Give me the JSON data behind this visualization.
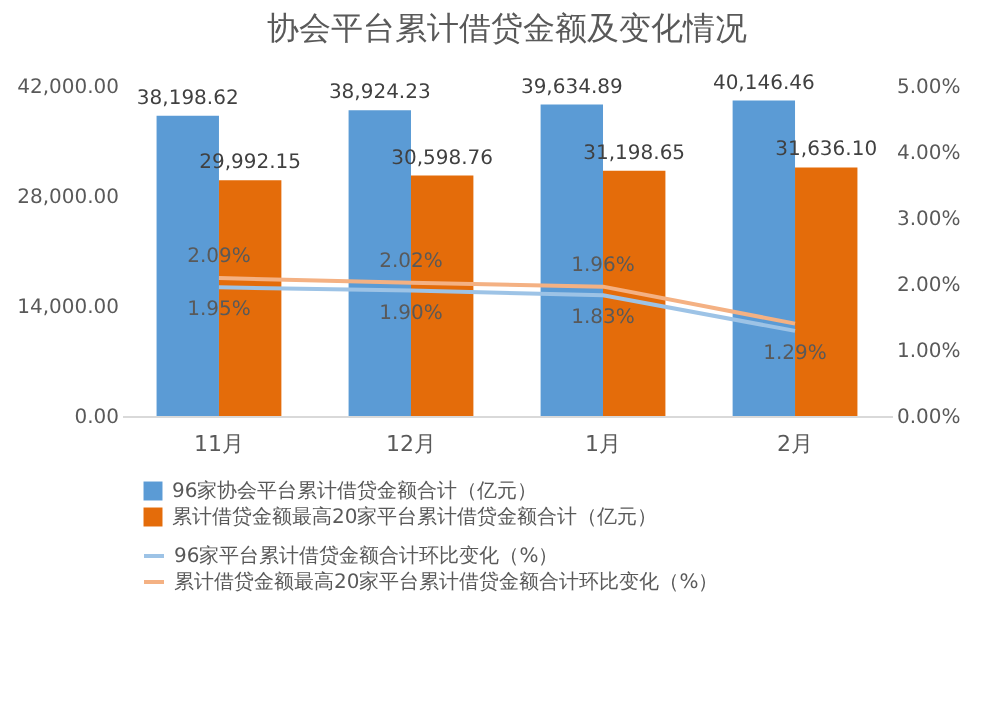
{
  "chart_data": {
    "type": "bar",
    "title": "协会平台累计借贷金额及变化情况",
    "categories": [
      "11月",
      "12月",
      "1月",
      "2月"
    ],
    "series": [
      {
        "name": "96家协会平台累计借贷金额合计（亿元）",
        "color": "#5b9bd5",
        "values": [
          38198.62,
          38924.23,
          39634.89,
          40146.46
        ],
        "value_labels": [
          "38,198.62",
          "38,924.23",
          "39,634.89",
          "40,146.46"
        ]
      },
      {
        "name": "累计借贷金额最高20家平台累计借贷金额合计（亿元）",
        "color": "#e46c0a",
        "values": [
          29992.15,
          30598.76,
          31198.65,
          31636.1
        ],
        "value_labels": [
          "29,992.15",
          "30,598.76",
          "31,198.65",
          "31,636.10"
        ]
      },
      {
        "name": "96家平台累计借贷金额合计环比变化（%）",
        "type": "line",
        "axis": "y2",
        "color": "#9dc3e6",
        "values": [
          1.95,
          1.9,
          1.83,
          1.29
        ],
        "value_labels": [
          "1.95%",
          "1.90%",
          "1.83%",
          "1.29%"
        ]
      },
      {
        "name": "累计借贷金额最高20家平台累计借贷金额合计环比变化（%）",
        "type": "line",
        "axis": "y2",
        "color": "#f4b183",
        "values": [
          2.09,
          2.02,
          1.96,
          1.4
        ],
        "value_labels": [
          "2.09%",
          "2.02%",
          "1.96%",
          null
        ]
      }
    ],
    "ylim": [
      0,
      42000
    ],
    "yticks": [
      {
        "value": 0,
        "label": "0.00"
      },
      {
        "value": 14000,
        "label": "14,000.00"
      },
      {
        "value": 28000,
        "label": "28,000.00"
      },
      {
        "value": 42000,
        "label": "42,000.00"
      }
    ],
    "y2lim": [
      0,
      5
    ],
    "y2ticks": [
      {
        "value": 0,
        "label": "0.00%"
      },
      {
        "value": 1,
        "label": "1.00%"
      },
      {
        "value": 2,
        "label": "2.00%"
      },
      {
        "value": 3,
        "label": "3.00%"
      },
      {
        "value": 4,
        "label": "4.00%"
      },
      {
        "value": 5,
        "label": "5.00%"
      }
    ],
    "legend": "bottom"
  }
}
